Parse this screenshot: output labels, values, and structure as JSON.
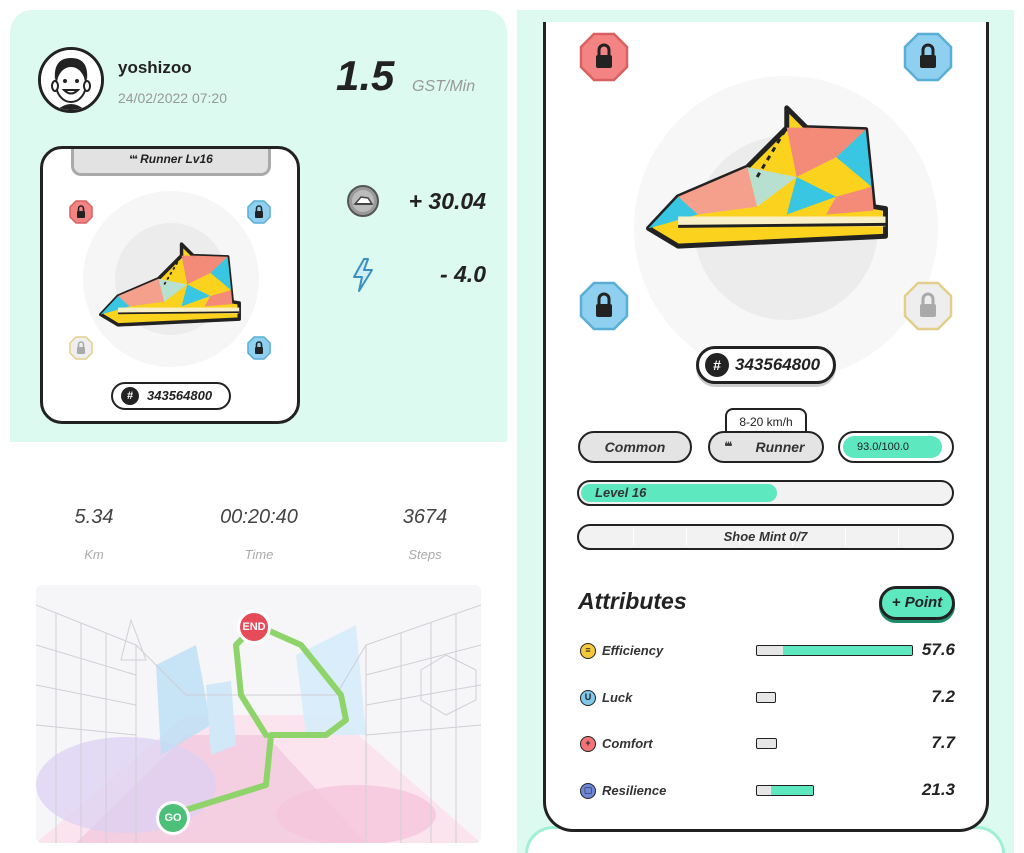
{
  "user": {
    "name": "yoshizoo",
    "datetime": "24/02/2022 07:20"
  },
  "earning": {
    "rate_value": "1.5",
    "rate_unit": "GST/Min",
    "gst_earned": "+ 30.04",
    "energy_used": "- 4.0"
  },
  "shoe_card": {
    "type_label": "Runner Lv16",
    "id": "343564800"
  },
  "stats": [
    {
      "value": "5.34",
      "label": "Km"
    },
    {
      "value": "00:20:40",
      "label": "Time"
    },
    {
      "value": "3674",
      "label": "Steps"
    }
  ],
  "map": {
    "end_label": "END",
    "start_label": "GO"
  },
  "shoe_detail": {
    "id": "343564800",
    "speed_range": "8-20 km/h",
    "quality": "Common",
    "type": "Runner",
    "durability": "93.0/100.0",
    "durability_fraction": 0.93,
    "level_label": "Level 16",
    "level_progress": 0.53,
    "mint_label": "Shoe Mint 0/7"
  },
  "attributes": {
    "title": "Attributes",
    "point_button": "+ Point",
    "items": [
      {
        "name": "Efficiency",
        "value": "57.6",
        "base_fraction": 0.17,
        "bonus_fraction": 0.83,
        "icon": "efficiency-icon",
        "color": "#f3c83c",
        "glyph": "≡"
      },
      {
        "name": "Luck",
        "value": "7.2",
        "base_fraction": 1.0,
        "bonus_fraction": 0,
        "icon": "luck-icon",
        "color": "#7ec8ea",
        "glyph": "U"
      },
      {
        "name": "Comfort",
        "value": "7.7",
        "base_fraction": 1.0,
        "bonus_fraction": 0,
        "icon": "comfort-icon",
        "color": "#f27474",
        "glyph": "+"
      },
      {
        "name": "Resilience",
        "value": "21.3",
        "base_fraction": 0.25,
        "bonus_fraction": 0.75,
        "icon": "resilience-icon",
        "color": "#6f86d6",
        "glyph": "▢"
      }
    ]
  },
  "colors": {
    "accent": "#5ee8c0",
    "panel_bg": "#dcfaf0",
    "shoe_yellow": "#fbd21e",
    "socket_red": "#f48484",
    "socket_blue": "#8fd0f0",
    "socket_grey": "#e0e0e0"
  }
}
